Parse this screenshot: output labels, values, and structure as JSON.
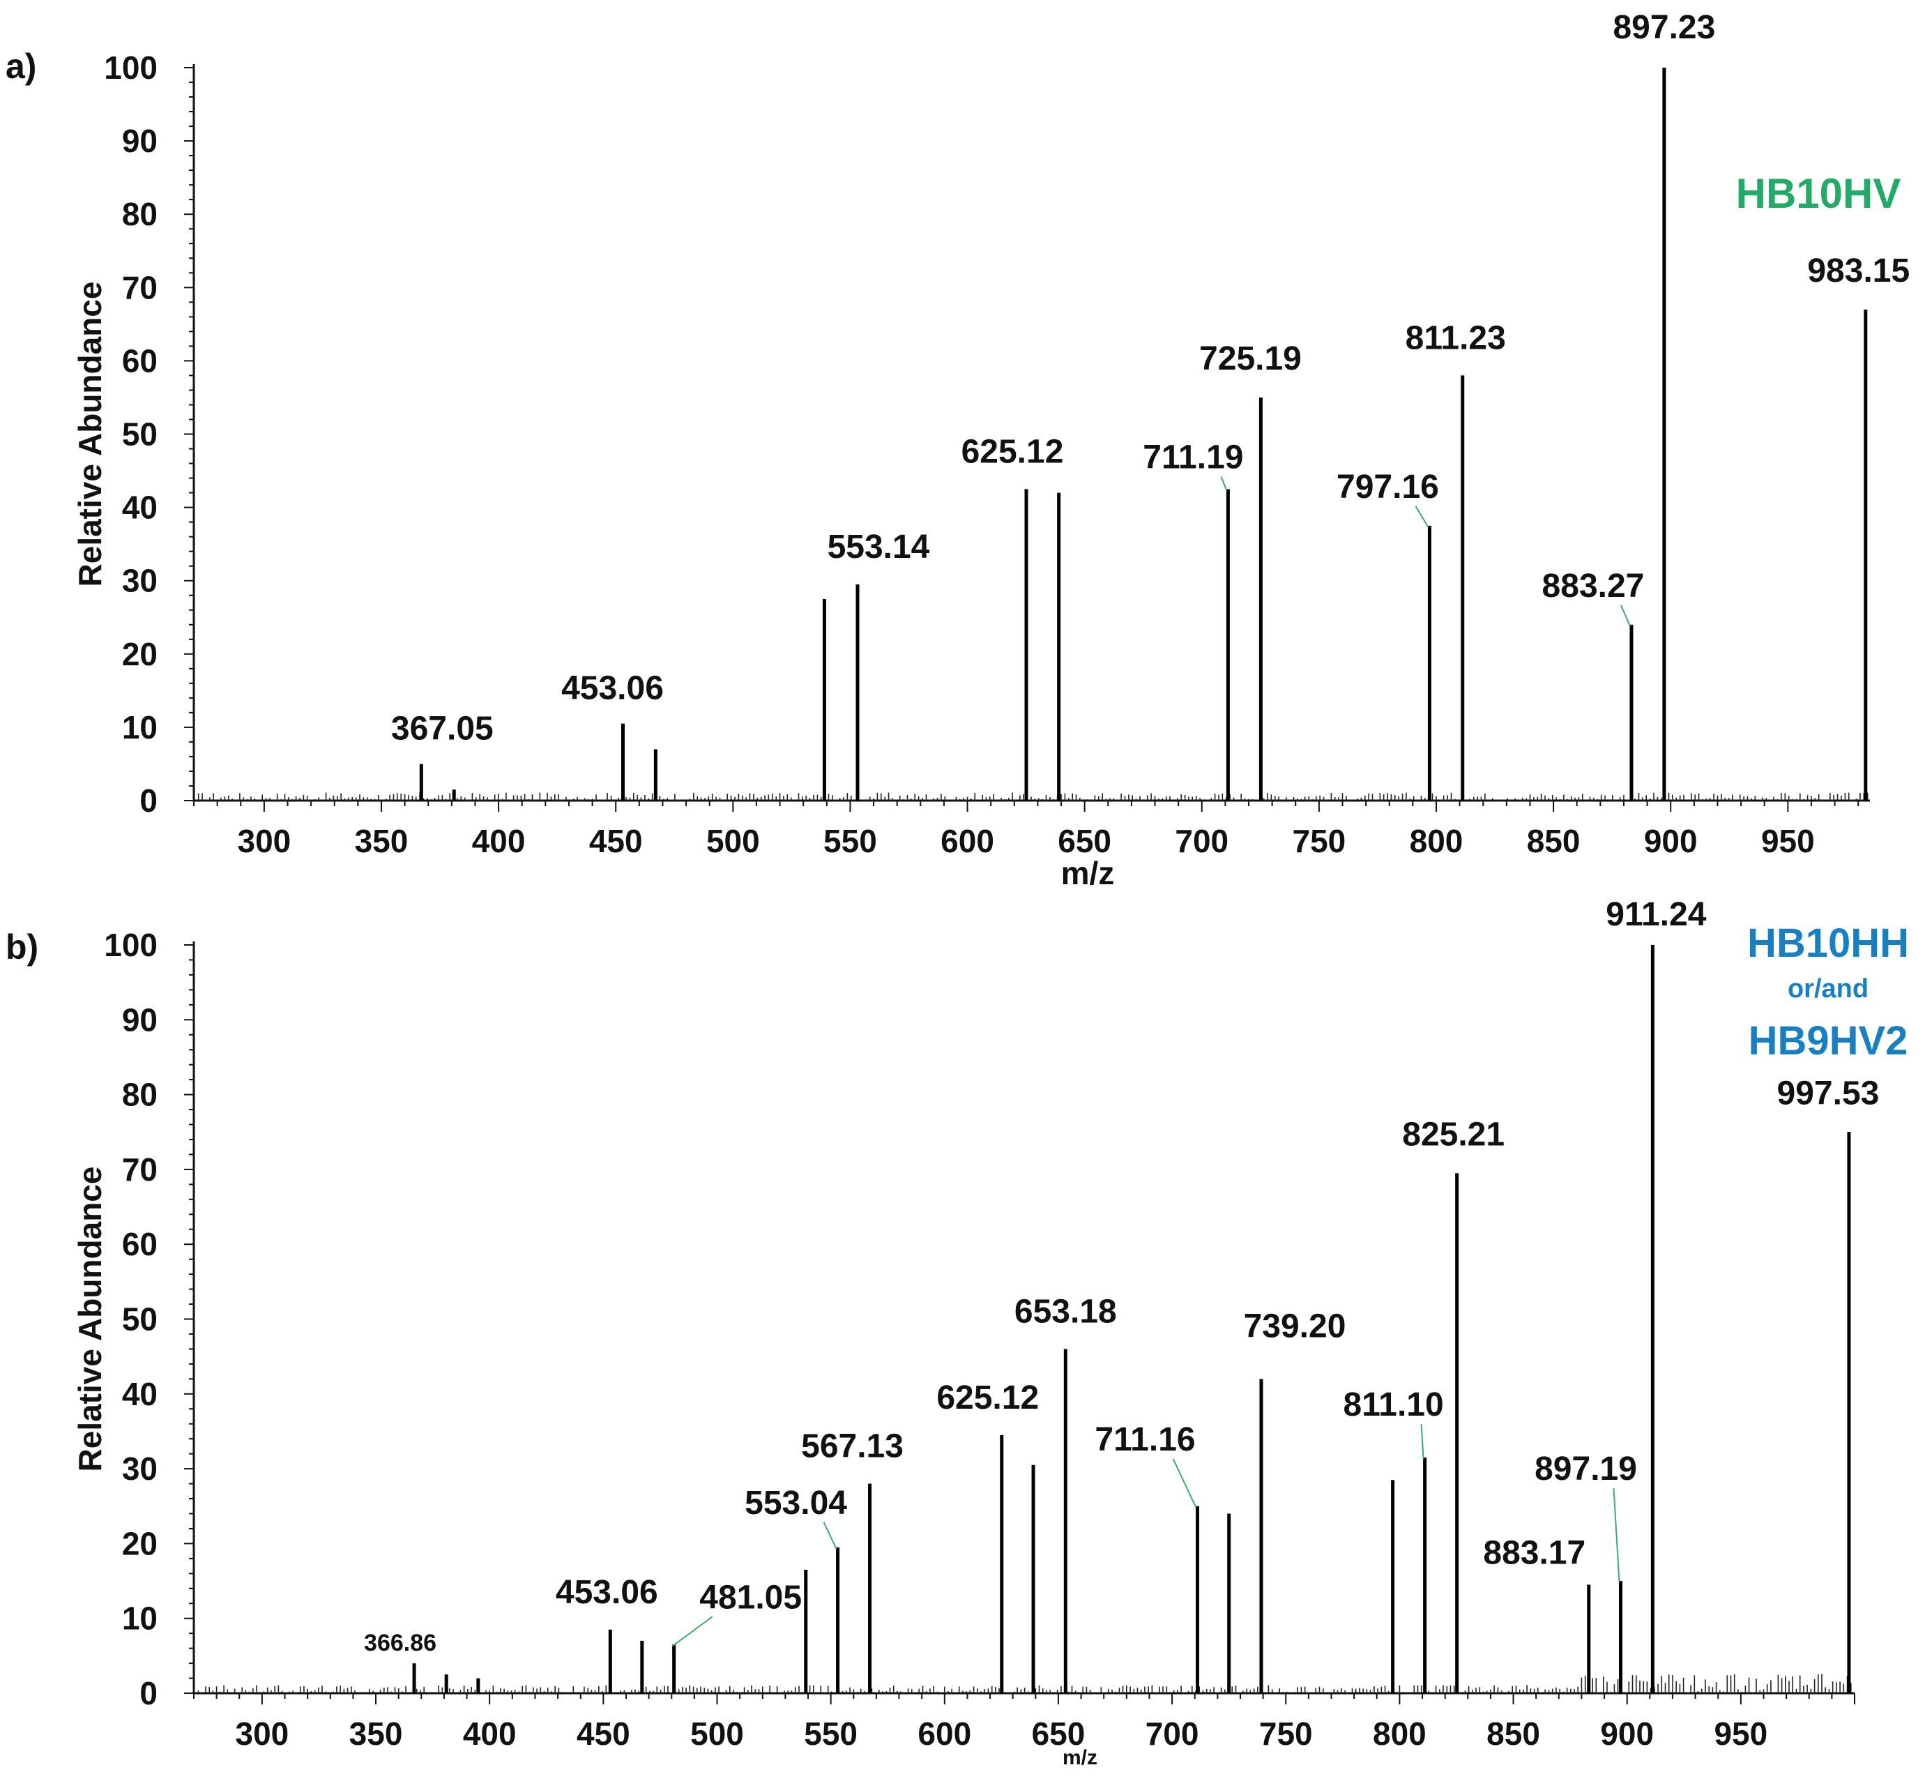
{
  "chart_data": [
    {
      "type": "bar",
      "panel_label": "a)",
      "xlabel": "m/z",
      "ylabel": "Relative Abundance",
      "xlim": [
        270,
        985
      ],
      "ylim": [
        0,
        100
      ],
      "xticks": [
        300,
        350,
        400,
        450,
        500,
        550,
        600,
        650,
        700,
        750,
        800,
        850,
        900,
        950
      ],
      "yticks": [
        0,
        10,
        20,
        30,
        40,
        50,
        60,
        70,
        80,
        90,
        100
      ],
      "annotation": {
        "text": "HB10HV",
        "color": "#22aa66"
      },
      "peaks": [
        {
          "x": 367.05,
          "y": 5,
          "label": "367.05"
        },
        {
          "x": 381,
          "y": 1.5
        },
        {
          "x": 453.06,
          "y": 10.5,
          "label": "453.06"
        },
        {
          "x": 467,
          "y": 7
        },
        {
          "x": 539,
          "y": 27.5
        },
        {
          "x": 553.14,
          "y": 29.5,
          "label": "553.14"
        },
        {
          "x": 625.12,
          "y": 42.5,
          "label": "625.12"
        },
        {
          "x": 639,
          "y": 42
        },
        {
          "x": 711.19,
          "y": 42.5,
          "label": "711.19",
          "leader": true
        },
        {
          "x": 725.19,
          "y": 55,
          "label": "725.19"
        },
        {
          "x": 797.16,
          "y": 37.5,
          "label": "797.16",
          "leader": true
        },
        {
          "x": 811.23,
          "y": 58,
          "label": "811.23"
        },
        {
          "x": 883.27,
          "y": 24,
          "label": "883.27",
          "leader": true
        },
        {
          "x": 897.23,
          "y": 100,
          "label": "897.23"
        },
        {
          "x": 983.15,
          "y": 67,
          "label": "983.15"
        }
      ]
    },
    {
      "type": "bar",
      "panel_label": "b)",
      "xlabel": "m/z",
      "ylabel": "Relative Abundance",
      "xlim": [
        270,
        1000
      ],
      "ylim": [
        0,
        100
      ],
      "xticks": [
        300,
        350,
        400,
        450,
        500,
        550,
        600,
        650,
        700,
        750,
        800,
        850,
        900,
        950
      ],
      "yticks": [
        0,
        10,
        20,
        30,
        40,
        50,
        60,
        70,
        80,
        90,
        100
      ],
      "annotation": {
        "line1": "HB10HH",
        "line2": "or/and",
        "line3": "HB9HV2",
        "color": "#1a7fc0"
      },
      "peaks": [
        {
          "x": 366.86,
          "y": 4,
          "label": "366.86",
          "small": true
        },
        {
          "x": 381,
          "y": 2.5
        },
        {
          "x": 395,
          "y": 2
        },
        {
          "x": 453.06,
          "y": 8.5,
          "label": "453.06"
        },
        {
          "x": 467,
          "y": 7
        },
        {
          "x": 481.05,
          "y": 6.5,
          "label": "481.05",
          "leader": true
        },
        {
          "x": 539,
          "y": 16.5
        },
        {
          "x": 553.04,
          "y": 19.5,
          "label": "553.04",
          "leader": true
        },
        {
          "x": 567.13,
          "y": 28,
          "label": "567.13"
        },
        {
          "x": 625.12,
          "y": 34.5,
          "label": "625.12"
        },
        {
          "x": 639,
          "y": 30.5
        },
        {
          "x": 653.18,
          "y": 46,
          "label": "653.18"
        },
        {
          "x": 711.16,
          "y": 25,
          "label": "711.16",
          "leader": true
        },
        {
          "x": 725,
          "y": 24
        },
        {
          "x": 739.2,
          "y": 42,
          "label": "739.20"
        },
        {
          "x": 797,
          "y": 28.5
        },
        {
          "x": 811.1,
          "y": 31.5,
          "label": "811.10",
          "leader": true
        },
        {
          "x": 825.21,
          "y": 69.5,
          "label": "825.21"
        },
        {
          "x": 883.17,
          "y": 14.5,
          "label": "883.17"
        },
        {
          "x": 897.19,
          "y": 15,
          "label": "897.19",
          "leader": true
        },
        {
          "x": 911.24,
          "y": 100,
          "label": "911.24"
        },
        {
          "x": 997.53,
          "y": 75,
          "label": "997.53"
        }
      ]
    }
  ]
}
